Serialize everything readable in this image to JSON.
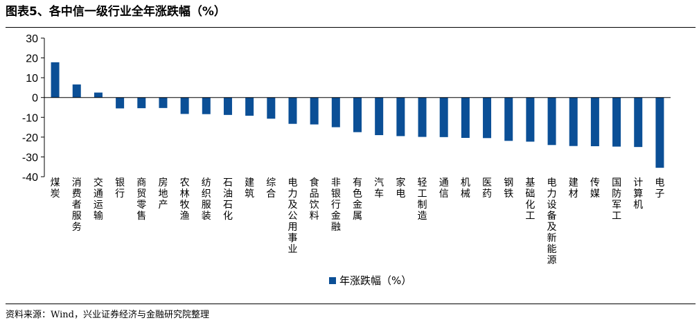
{
  "title": "图表5、各中信一级行业全年涨跌幅（%）",
  "source": "资料来源：Wind，兴业证券经济与金融研究院整理",
  "chart_data": {
    "type": "bar",
    "title": "图表5、各中信一级行业全年涨跌幅（%）",
    "xlabel": "",
    "ylabel": "",
    "ylim": [
      -40,
      30
    ],
    "yticks": [
      30,
      20,
      10,
      0,
      -10,
      -20,
      -30,
      -40
    ],
    "ytick_labels": [
      "30",
      "20",
      "10",
      "0",
      "-10",
      "-20",
      "-30",
      "-40"
    ],
    "grid": false,
    "legend": "bottom",
    "bar_color": "#0b4f96",
    "categories": [
      "煤炭",
      "消费者服务",
      "交通运输",
      "银行",
      "商贸零售",
      "房地产",
      "农林牧渔",
      "纺织服装",
      "石油石化",
      "建筑",
      "综合",
      "电力及公用事业",
      "食品饮料",
      "非银行金融",
      "有色金属",
      "汽车",
      "家电",
      "轻工制造",
      "通信",
      "机械",
      "医药",
      "钢铁",
      "基础化工",
      "电力设备及新能源",
      "建材",
      "传媒",
      "国防军工",
      "计算机",
      "电子"
    ],
    "series": [
      {
        "name": "年涨跌幅（%）",
        "values": [
          17.8,
          6.6,
          2.5,
          -5.5,
          -5.4,
          -5.3,
          -8.3,
          -8.4,
          -8.8,
          -9.2,
          -10.7,
          -13.3,
          -13.6,
          -15.0,
          -17.5,
          -19.0,
          -19.5,
          -19.9,
          -20.0,
          -20.4,
          -20.5,
          -21.9,
          -22.3,
          -24.0,
          -24.5,
          -24.6,
          -24.8,
          -25.0,
          -35.5
        ]
      }
    ]
  }
}
